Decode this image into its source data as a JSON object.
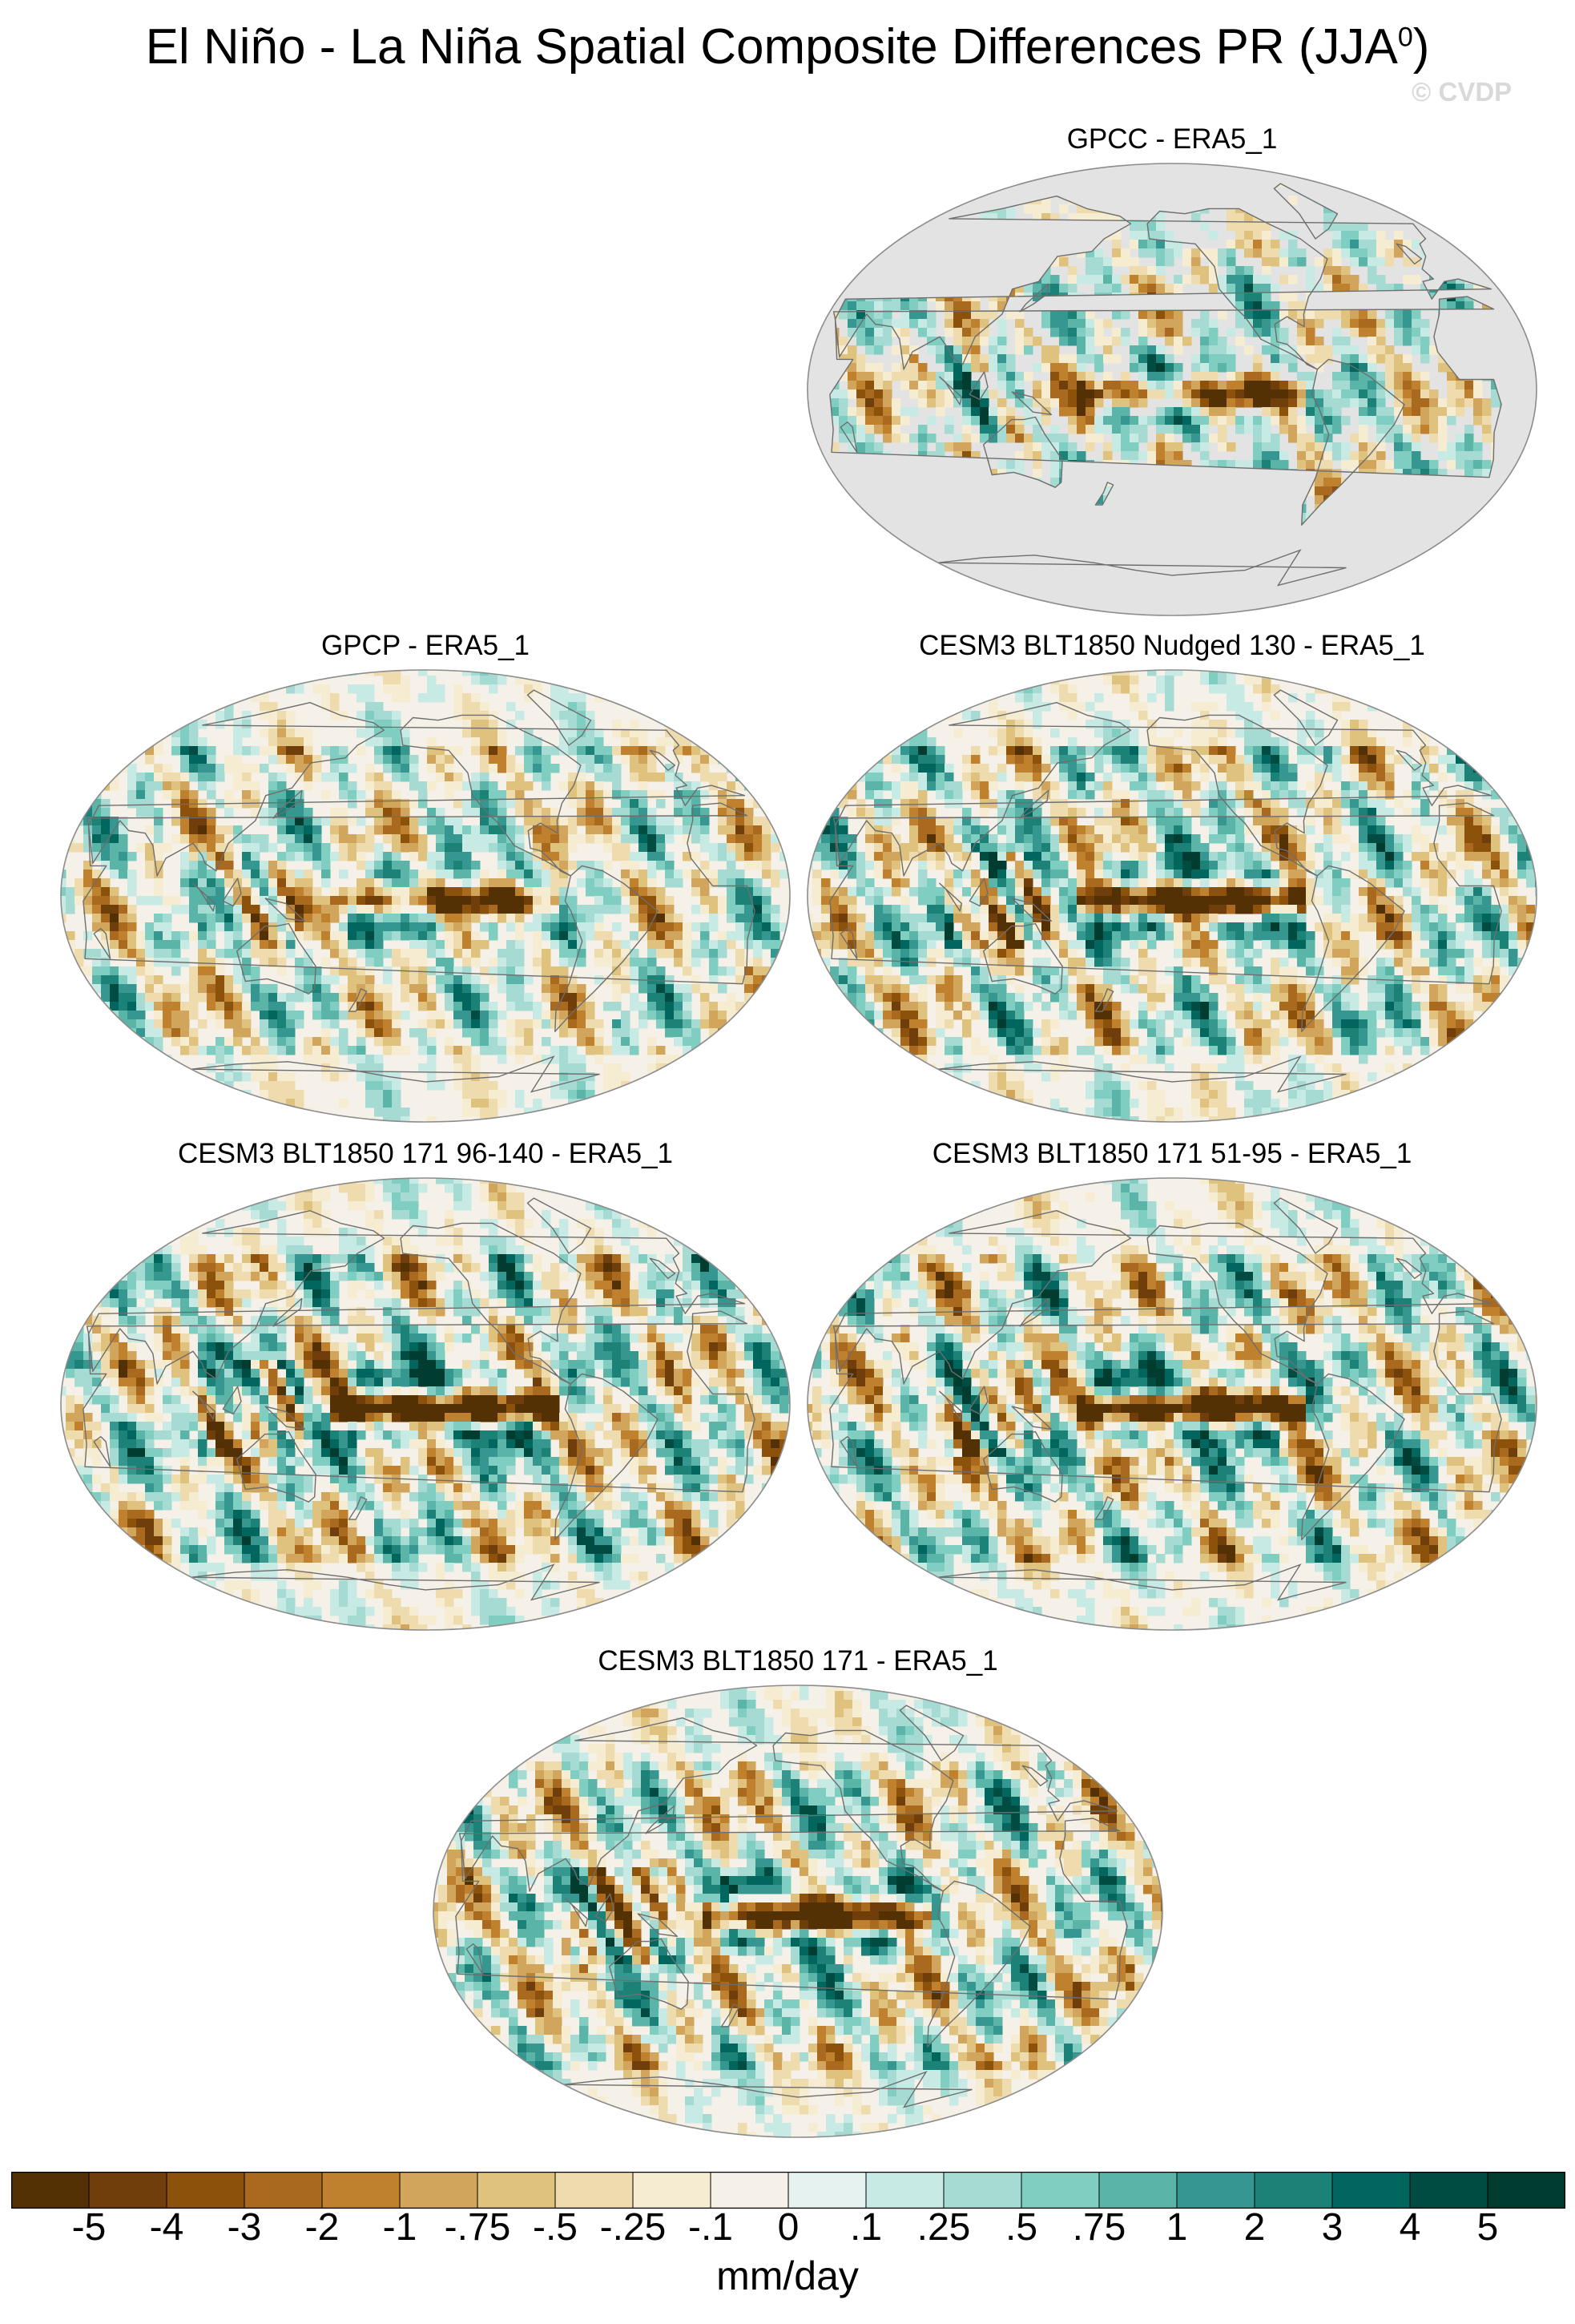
{
  "title": "El Niño - La Niña Spatial Composite Differences PR (JJA",
  "title_sup": "0",
  "title_close": ")",
  "watermark": "© CVDP",
  "colors": {
    "map_background_missing": "#e3e3e3",
    "coastline": "#6e6e6e",
    "frame": "#8c8c8c"
  },
  "panels": [
    {
      "title": "GPCC - ERA5_1",
      "land_only": true
    },
    {
      "title": "GPCP - ERA5_1",
      "land_only": false
    },
    {
      "title": "CESM3 BLT1850 Nudged 130 - ERA5_1",
      "land_only": false
    },
    {
      "title": "CESM3 BLT1850 171 96-140 - ERA5_1",
      "land_only": false
    },
    {
      "title": "CESM3 BLT1850 171 51-95 - ERA5_1",
      "land_only": false
    },
    {
      "title": "CESM3 BLT1850 171 - ERA5_1",
      "land_only": false
    }
  ],
  "colorbar": {
    "units": "mm/day",
    "tick_labels": [
      "-5",
      "-4",
      "-3",
      "-2",
      "-1",
      "-.75",
      "-.5",
      "-.25",
      "-.1",
      "0",
      ".1",
      ".25",
      ".5",
      ".75",
      "1",
      "2",
      "3",
      "4",
      "5"
    ],
    "colors": [
      "#543005",
      "#6f3e0b",
      "#8c510a",
      "#a96a1f",
      "#bf812d",
      "#d1a55c",
      "#dfc27d",
      "#efdcae",
      "#f6ecd2",
      "#f5f1e8",
      "#e6f2ef",
      "#c7eae5",
      "#a5dbd2",
      "#80cdc1",
      "#5ab4a8",
      "#35978f",
      "#1c8278",
      "#01665e",
      "#014c42",
      "#003c30"
    ]
  }
}
